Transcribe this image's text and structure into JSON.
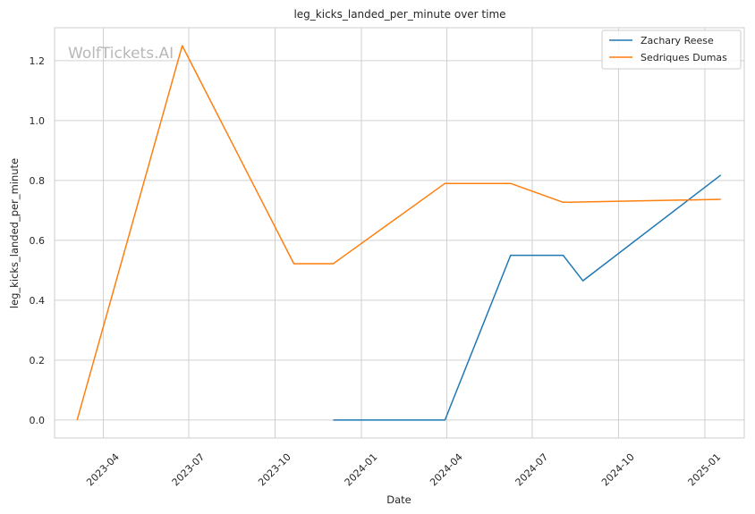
{
  "chart_data": {
    "type": "line",
    "title": "leg_kicks_landed_per_minute over time",
    "xlabel": "Date",
    "ylabel": "leg_kicks_landed_per_minute",
    "watermark": "WolfTickets.AI",
    "ylim": [
      -0.06,
      1.31
    ],
    "xlim": [
      "2023-02-08",
      "2025-02-12"
    ],
    "x_ticks": [
      "2023-04-01",
      "2023-07-01",
      "2023-10-01",
      "2024-01-01",
      "2024-04-01",
      "2024-07-01",
      "2024-10-01",
      "2025-01-01"
    ],
    "x_tick_labels": [
      "2023-04",
      "2023-07",
      "2023-10",
      "2024-01",
      "2024-04",
      "2024-07",
      "2024-10",
      "2025-01"
    ],
    "y_ticks": [
      0.0,
      0.2,
      0.4,
      0.6,
      0.8,
      1.0,
      1.2
    ],
    "y_tick_labels": [
      "0.0",
      "0.2",
      "0.4",
      "0.6",
      "0.8",
      "1.0",
      "1.2"
    ],
    "grid": true,
    "legend_position": "top-right",
    "series": [
      {
        "name": "Zachary Reese",
        "color": "#1f77b4",
        "x": [
          "2023-12-02",
          "2024-03-30",
          "2024-06-08",
          "2024-08-03",
          "2024-08-24",
          "2025-01-18"
        ],
        "y": [
          0.0,
          0.0,
          0.55,
          0.55,
          0.465,
          0.818
        ]
      },
      {
        "name": "Sedriques Dumas",
        "color": "#ff7f0e",
        "x": [
          "2023-03-04",
          "2023-06-24",
          "2023-10-21",
          "2023-12-02",
          "2024-03-30",
          "2024-06-08",
          "2024-08-03",
          "2025-01-18"
        ],
        "y": [
          0.0,
          1.25,
          0.522,
          0.522,
          0.79,
          0.79,
          0.727,
          0.737
        ]
      }
    ]
  }
}
